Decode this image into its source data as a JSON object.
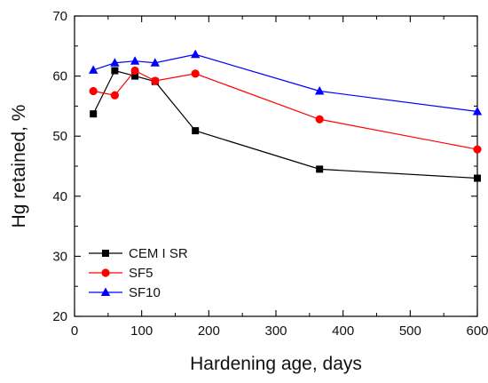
{
  "chart_data": {
    "type": "line",
    "title": "",
    "xlabel": "Hardening age, days",
    "ylabel": "Hg retained, %",
    "xlim": [
      0,
      600
    ],
    "ylim": [
      20,
      70
    ],
    "xticks": [
      0,
      100,
      200,
      300,
      400,
      500,
      600
    ],
    "yticks": [
      20,
      30,
      40,
      50,
      60,
      70
    ],
    "grid": false,
    "legend_position": "bottom-left",
    "series": [
      {
        "name": "CEM I SR",
        "color": "#000000",
        "marker": "square",
        "x": [
          28,
          60,
          90,
          120,
          180,
          365,
          600
        ],
        "y": [
          53.7,
          60.9,
          60.0,
          59.1,
          50.9,
          44.5,
          43.0
        ]
      },
      {
        "name": "SF5",
        "color": "#ff0000",
        "marker": "circle",
        "x": [
          28,
          60,
          90,
          120,
          180,
          365,
          600
        ],
        "y": [
          57.5,
          56.8,
          60.9,
          59.2,
          60.4,
          52.8,
          47.8
        ]
      },
      {
        "name": "SF10",
        "color": "#0000ff",
        "marker": "triangle",
        "x": [
          28,
          60,
          90,
          120,
          180,
          365,
          600
        ],
        "y": [
          61.0,
          62.2,
          62.5,
          62.2,
          63.6,
          57.5,
          54.1
        ]
      }
    ]
  }
}
